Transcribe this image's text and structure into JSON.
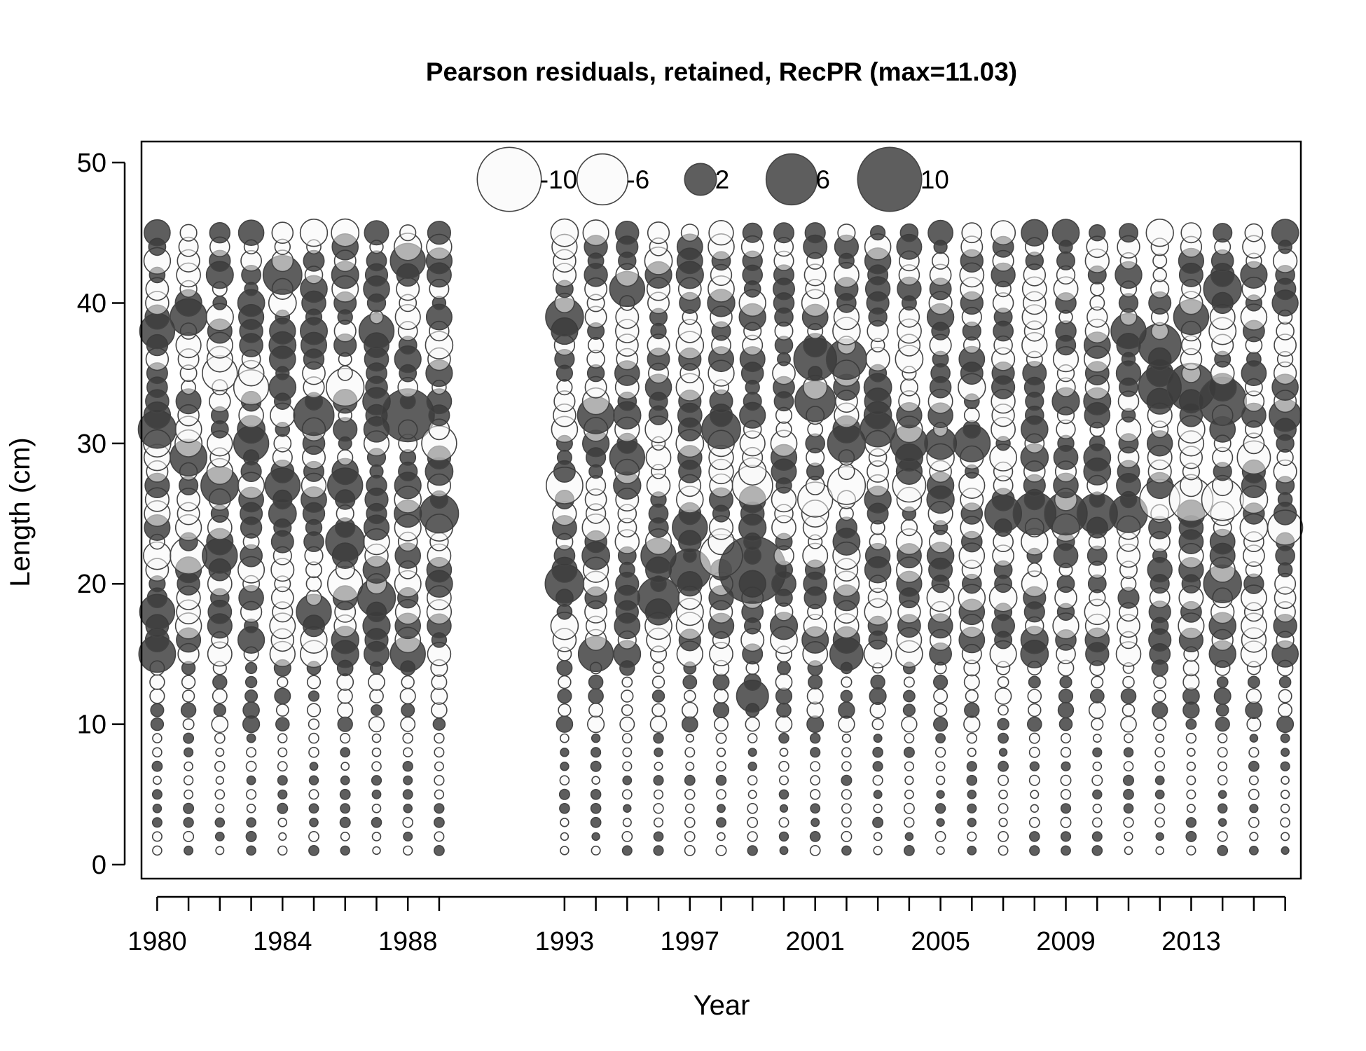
{
  "chart_data": {
    "type": "scatter",
    "title": "Pearson residuals, retained, RecPR (max=11.03)",
    "xlabel": "Year",
    "ylabel": "Length (cm)",
    "xlim": [
      1979.5,
      2016.5
    ],
    "ylim": [
      -1,
      51.5
    ],
    "y_ticks": [
      0,
      10,
      20,
      30,
      40,
      50
    ],
    "x_tick_labels": [
      1980,
      1984,
      1988,
      1993,
      1997,
      2001,
      2005,
      2009,
      2013
    ],
    "x_ticks": [
      1980,
      1981,
      1982,
      1983,
      1984,
      1985,
      1986,
      1987,
      1988,
      1989,
      1993,
      1994,
      1995,
      1996,
      1997,
      1998,
      1999,
      2000,
      2001,
      2002,
      2003,
      2004,
      2005,
      2006,
      2007,
      2008,
      2009,
      2010,
      2011,
      2012,
      2013,
      2014,
      2015,
      2016
    ],
    "years": [
      1980,
      1981,
      1982,
      1983,
      1984,
      1985,
      1986,
      1987,
      1988,
      1989,
      1993,
      1994,
      1995,
      1996,
      1997,
      1998,
      1999,
      2000,
      2001,
      2002,
      2003,
      2004,
      2005,
      2006,
      2007,
      2008,
      2009,
      2010,
      2011,
      2012,
      2013,
      2014,
      2015,
      2016
    ],
    "length_bins": [
      1,
      45
    ],
    "max_residual": 11.03,
    "legend": {
      "placement": "top-center",
      "entries": [
        {
          "label": "-10",
          "value": -10
        },
        {
          "label": "-6",
          "value": -6
        },
        {
          "label": "2",
          "value": 2
        },
        {
          "label": "6",
          "value": 6
        },
        {
          "label": "10",
          "value": 10
        }
      ]
    },
    "colors": {
      "positive": "#3a3a3a",
      "negative": "#f7f7f7",
      "stroke": "#444444",
      "frame": "#000000"
    },
    "notable_residuals": [
      {
        "year": 1980,
        "length": 31,
        "residual": 3
      },
      {
        "year": 1980,
        "length": 38,
        "residual": 2.5
      },
      {
        "year": 1980,
        "length": 18,
        "residual": 2.5
      },
      {
        "year": 1980,
        "length": 15,
        "residual": 2.8
      },
      {
        "year": 1981,
        "length": 39,
        "residual": 2.8
      },
      {
        "year": 1981,
        "length": 29,
        "residual": 2.8
      },
      {
        "year": 1981,
        "length": 22,
        "residual": -2.8
      },
      {
        "year": 1982,
        "length": 27,
        "residual": 3
      },
      {
        "year": 1982,
        "length": 22,
        "residual": 2.5
      },
      {
        "year": 1982,
        "length": 35,
        "residual": -2.5
      },
      {
        "year": 1983,
        "length": 30,
        "residual": 2.5
      },
      {
        "year": 1983,
        "length": 34,
        "residual": -2.5
      },
      {
        "year": 1984,
        "length": 42,
        "residual": 3.2
      },
      {
        "year": 1984,
        "length": 27,
        "residual": 2.5
      },
      {
        "year": 1985,
        "length": 32,
        "residual": 3.5
      },
      {
        "year": 1985,
        "length": 18,
        "residual": 2.5
      },
      {
        "year": 1986,
        "length": 34,
        "residual": -3
      },
      {
        "year": 1986,
        "length": 23,
        "residual": 3.2
      },
      {
        "year": 1986,
        "length": 27,
        "residual": 2.5
      },
      {
        "year": 1986,
        "length": 20,
        "residual": -2.5
      },
      {
        "year": 1987,
        "length": 19,
        "residual": 3
      },
      {
        "year": 1987,
        "length": 38,
        "residual": 2.5
      },
      {
        "year": 1988,
        "length": 32,
        "residual": 6.5
      },
      {
        "year": 1988,
        "length": 43,
        "residual": 2.5
      },
      {
        "year": 1988,
        "length": 15,
        "residual": 2.5
      },
      {
        "year": 1989,
        "length": 25,
        "residual": 3.2
      },
      {
        "year": 1989,
        "length": 30,
        "residual": -2.5
      },
      {
        "year": 1993,
        "length": 39,
        "residual": 3
      },
      {
        "year": 1993,
        "length": 20,
        "residual": 3.2
      },
      {
        "year": 1993,
        "length": 27,
        "residual": -2.8
      },
      {
        "year": 1994,
        "length": 32,
        "residual": 2.8
      },
      {
        "year": 1994,
        "length": 15,
        "residual": 2.5
      },
      {
        "year": 1995,
        "length": 41,
        "residual": 2.5
      },
      {
        "year": 1995,
        "length": 29,
        "residual": 2.5
      },
      {
        "year": 1996,
        "length": 19,
        "residual": 3.8
      },
      {
        "year": 1996,
        "length": 22,
        "residual": 2.5
      },
      {
        "year": 1997,
        "length": 21,
        "residual": 3.8
      },
      {
        "year": 1997,
        "length": 24,
        "residual": 2.5
      },
      {
        "year": 1998,
        "length": 31,
        "residual": 3.2
      },
      {
        "year": 1998,
        "length": 22,
        "residual": -4
      },
      {
        "year": 1999,
        "length": 21,
        "residual": 11.03
      },
      {
        "year": 1999,
        "length": 27,
        "residual": -3.5
      },
      {
        "year": 1999,
        "length": 12,
        "residual": 2
      },
      {
        "year": 2001,
        "length": 36,
        "residual": 4
      },
      {
        "year": 2001,
        "length": 33,
        "residual": 3.5
      },
      {
        "year": 2001,
        "length": 26,
        "residual": -2.5
      },
      {
        "year": 2002,
        "length": 36,
        "residual": 3.5
      },
      {
        "year": 2002,
        "length": 30,
        "residual": 3
      },
      {
        "year": 2002,
        "length": 27,
        "residual": -3
      },
      {
        "year": 2002,
        "length": 15,
        "residual": 2.2
      },
      {
        "year": 2003,
        "length": 31,
        "residual": 2.5
      },
      {
        "year": 2004,
        "length": 30,
        "residual": 2.8
      },
      {
        "year": 2004,
        "length": 27,
        "residual": -2.2
      },
      {
        "year": 2005,
        "length": 30,
        "residual": 2
      },
      {
        "year": 2006,
        "length": 30,
        "residual": 2.8
      },
      {
        "year": 2007,
        "length": 25,
        "residual": 2.8
      },
      {
        "year": 2008,
        "length": 25,
        "residual": 4
      },
      {
        "year": 2009,
        "length": 25,
        "residual": 4
      },
      {
        "year": 2010,
        "length": 25,
        "residual": 3.5
      },
      {
        "year": 2011,
        "length": 25,
        "residual": 3
      },
      {
        "year": 2011,
        "length": 38,
        "residual": 2.5
      },
      {
        "year": 2012,
        "length": 37,
        "residual": 4
      },
      {
        "year": 2012,
        "length": 34,
        "residual": 4
      },
      {
        "year": 2012,
        "length": 26,
        "residual": -3.5
      },
      {
        "year": 2013,
        "length": 34,
        "residual": 5.2
      },
      {
        "year": 2013,
        "length": 26,
        "residual": -4.2
      },
      {
        "year": 2013,
        "length": 39,
        "residual": 2.5
      },
      {
        "year": 2014,
        "length": 33,
        "residual": 5.2
      },
      {
        "year": 2014,
        "length": 41,
        "residual": 3
      },
      {
        "year": 2014,
        "length": 20,
        "residual": 3
      },
      {
        "year": 2014,
        "length": 26,
        "residual": -3.8
      },
      {
        "year": 2015,
        "length": 29,
        "residual": -2.2
      },
      {
        "year": 2016,
        "length": 24,
        "residual": -2.5
      },
      {
        "year": 2016,
        "length": 32,
        "residual": 2
      }
    ]
  }
}
